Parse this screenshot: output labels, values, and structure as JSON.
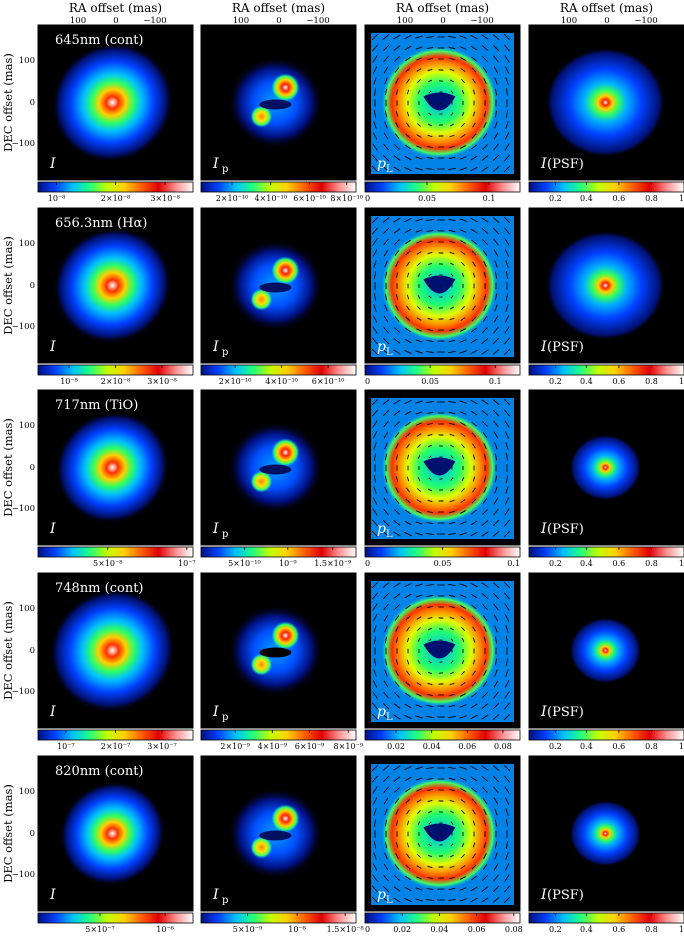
{
  "figure": {
    "top_axis_title": "RA offset (mas)",
    "top_ticks": [
      "100",
      "0",
      "−100"
    ],
    "left_axis_title": "DEC offset (mas)",
    "left_ticks": [
      "100",
      "0",
      "−100"
    ],
    "columns": [
      {
        "label": "I",
        "subscript": "",
        "suffix": ""
      },
      {
        "label": "I",
        "subscript": "p",
        "suffix": ""
      },
      {
        "label": "p",
        "subscript": "L",
        "suffix": ""
      },
      {
        "label": "I",
        "subscript": "",
        "suffix": " (PSF)"
      }
    ],
    "rows": [
      {
        "title": "645nm (cont)",
        "colorbars": [
          {
            "ticks": [
              "10⁻⁸",
              "2×10⁻⁸",
              "3×10⁻⁸"
            ],
            "tick_pos": [
              0.12,
              0.5,
              0.82
            ]
          },
          {
            "ticks": [
              "2×10⁻¹⁰",
              "4×10⁻¹⁰",
              "6×10⁻¹⁰",
              "8×10⁻¹⁰"
            ],
            "tick_pos": [
              0.2,
              0.45,
              0.7,
              0.94
            ]
          },
          {
            "ticks": [
              "0",
              "0.05",
              "0.1"
            ],
            "tick_pos": [
              0.0,
              0.4,
              0.8
            ]
          },
          {
            "ticks": [
              "0.2",
              "0.4",
              "0.6",
              "0.8",
              "1"
            ],
            "tick_pos": [
              0.17,
              0.37,
              0.58,
              0.79,
              1.0
            ]
          }
        ]
      },
      {
        "title": "656.3nm (Hα)",
        "colorbars": [
          {
            "ticks": [
              "10⁻⁸",
              "2×10⁻⁸",
              "3×10⁻⁸"
            ],
            "tick_pos": [
              0.2,
              0.5,
              0.8
            ]
          },
          {
            "ticks": [
              "2×10⁻¹⁰",
              "4×10⁻¹⁰",
              "6×10⁻¹⁰"
            ],
            "tick_pos": [
              0.22,
              0.52,
              0.82
            ]
          },
          {
            "ticks": [
              "0",
              "0.05",
              "0.1"
            ],
            "tick_pos": [
              0.0,
              0.42,
              0.84
            ]
          },
          {
            "ticks": [
              "0.2",
              "0.4",
              "0.6",
              "0.8",
              "1"
            ],
            "tick_pos": [
              0.17,
              0.37,
              0.58,
              0.79,
              1.0
            ]
          }
        ]
      },
      {
        "title": "717nm (TiO)",
        "colorbars": [
          {
            "ticks": [
              "5×10⁻⁸",
              "10⁻⁷"
            ],
            "tick_pos": [
              0.45,
              0.96
            ]
          },
          {
            "ticks": [
              "5×10⁻¹⁰",
              "10⁻⁹",
              "1.5×10⁻⁹"
            ],
            "tick_pos": [
              0.28,
              0.56,
              0.85
            ]
          },
          {
            "ticks": [
              "0",
              "0.05",
              "0.1"
            ],
            "tick_pos": [
              0.0,
              0.5,
              1.0
            ]
          },
          {
            "ticks": [
              "0.2",
              "0.4",
              "0.6",
              "0.8",
              "1"
            ],
            "tick_pos": [
              0.17,
              0.37,
              0.58,
              0.79,
              1.0
            ]
          }
        ]
      },
      {
        "title": "748nm (cont)",
        "colorbars": [
          {
            "ticks": [
              "10⁻⁷",
              "2×10⁻⁷",
              "3×10⁻⁷"
            ],
            "tick_pos": [
              0.18,
              0.5,
              0.8
            ]
          },
          {
            "ticks": [
              "2×10⁻⁹",
              "4×10⁻⁹",
              "6×10⁻⁹",
              "8×10⁻⁹"
            ],
            "tick_pos": [
              0.22,
              0.46,
              0.7,
              0.95
            ]
          },
          {
            "ticks": [
              "0.02",
              "0.04",
              "0.06",
              "0.08"
            ],
            "tick_pos": [
              0.2,
              0.43,
              0.66,
              0.89
            ]
          },
          {
            "ticks": [
              "0.2",
              "0.4",
              "0.6",
              "0.8",
              "1"
            ],
            "tick_pos": [
              0.17,
              0.37,
              0.58,
              0.79,
              1.0
            ]
          }
        ]
      },
      {
        "title": "820nm (cont)",
        "colorbars": [
          {
            "ticks": [
              "5×10⁻⁷",
              "10⁻⁶"
            ],
            "tick_pos": [
              0.4,
              0.82
            ]
          },
          {
            "ticks": [
              "5×10⁻⁹",
              "10⁻⁸",
              "1.5×10⁻⁸"
            ],
            "tick_pos": [
              0.3,
              0.62,
              0.93
            ]
          },
          {
            "ticks": [
              "0",
              "0.02",
              "0.04",
              "0.06",
              "0.08"
            ],
            "tick_pos": [
              0.0,
              0.24,
              0.48,
              0.72,
              0.96
            ]
          },
          {
            "ticks": [
              "0.2",
              "0.4",
              "0.6",
              "0.8",
              "1"
            ],
            "tick_pos": [
              0.17,
              0.37,
              0.58,
              0.79,
              1.0
            ]
          }
        ]
      }
    ]
  },
  "colors": {
    "background": "#000000",
    "colormap": [
      "#000000",
      "#001080",
      "#0040ff",
      "#00c0ff",
      "#20ff80",
      "#c0ff00",
      "#ffd000",
      "#ff6000",
      "#e00000",
      "#ff9090",
      "#ffffff"
    ],
    "vectors": "#000000",
    "label_text": "#ffffff"
  }
}
